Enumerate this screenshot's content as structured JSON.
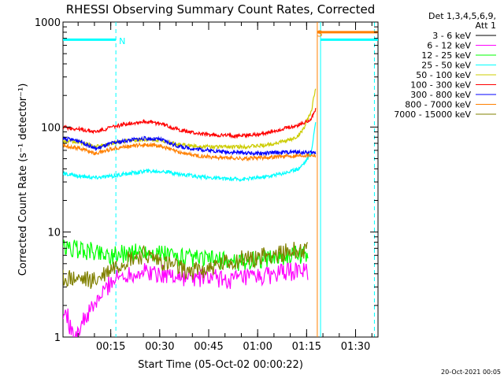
{
  "chart_data": {
    "type": "line",
    "title": "RHESSI Observing Summary Count Rates, Corrected",
    "xlabel": "Start Time (05-Oct-02 00:00:22)",
    "ylabel": "Corrected Count Rate (s⁻¹ detector⁻¹)",
    "x_unit": "minutes after start",
    "xlim": [
      0,
      96.5
    ],
    "ylim": [
      1,
      1000
    ],
    "yscale": "log",
    "x_ticks": [
      {
        "value": 14.63,
        "label": "00:15"
      },
      {
        "value": 29.63,
        "label": "00:30"
      },
      {
        "value": 44.63,
        "label": "00:45"
      },
      {
        "value": 59.63,
        "label": "01:00"
      },
      {
        "value": 74.63,
        "label": "01:15"
      },
      {
        "value": 89.63,
        "label": "01:30"
      }
    ],
    "y_ticks": [
      {
        "value": 1,
        "label": "1"
      },
      {
        "value": 10,
        "label": "10"
      },
      {
        "value": 100,
        "label": "100"
      },
      {
        "value": 1000,
        "label": "1000"
      }
    ],
    "legend_header": [
      "Det 1,3,4,5,6,9,",
      "Att 1"
    ],
    "legend_position": "right",
    "series": [
      {
        "name": "3 - 6 keV",
        "color": "#000000",
        "x": [],
        "values": []
      },
      {
        "name": "6 - 12 keV",
        "color": "#ff00ff",
        "x": [
          0,
          1,
          2,
          3,
          15,
          20,
          25,
          30,
          35,
          40,
          45,
          50,
          55,
          60,
          65,
          70,
          75
        ],
        "values": [
          1.5,
          1.8,
          1.3,
          1.0,
          3.5,
          4.0,
          4.2,
          4.0,
          3.8,
          3.6,
          3.7,
          3.5,
          3.6,
          3.7,
          4.0,
          4.2,
          4.3
        ]
      },
      {
        "name": "12 - 25 keV",
        "color": "#00ff00",
        "x": [
          0,
          5,
          10,
          15,
          20,
          25,
          30,
          35,
          40,
          45,
          50,
          55,
          60,
          65,
          70,
          75
        ],
        "values": [
          7.0,
          6.8,
          6.5,
          6.0,
          6.3,
          6.5,
          6.2,
          5.8,
          5.5,
          5.5,
          5.3,
          5.2,
          5.5,
          5.8,
          6.0,
          6.2
        ]
      },
      {
        "name": "25 - 50 keV",
        "color": "#00ffff",
        "x": [
          0,
          5,
          10,
          15,
          20,
          25,
          30,
          35,
          40,
          45,
          50,
          55,
          60,
          65,
          70,
          72,
          74,
          76,
          77.5
        ],
        "values": [
          36,
          34,
          33,
          34,
          36,
          38,
          38,
          36,
          34,
          33,
          32,
          32,
          33,
          35,
          38,
          40,
          46,
          56,
          120
        ]
      },
      {
        "name": "50 - 100 keV",
        "color": "#cccc00",
        "x": [
          0,
          5,
          10,
          15,
          20,
          25,
          30,
          35,
          40,
          45,
          50,
          55,
          60,
          65,
          70,
          72,
          74,
          76,
          77.5
        ],
        "values": [
          73,
          72,
          65,
          70,
          74,
          76,
          75,
          68,
          66,
          65,
          65,
          65,
          66,
          70,
          76,
          82,
          100,
          140,
          240
        ]
      },
      {
        "name": "100 - 300 keV",
        "color": "#ff0000",
        "x": [
          0,
          5,
          10,
          15,
          20,
          25,
          30,
          35,
          40,
          45,
          50,
          55,
          60,
          65,
          70,
          72,
          74,
          76,
          77.5
        ],
        "values": [
          100,
          95,
          90,
          100,
          108,
          113,
          108,
          95,
          88,
          84,
          83,
          83,
          85,
          92,
          100,
          104,
          110,
          120,
          150
        ]
      },
      {
        "name": "300 - 800 keV",
        "color": "#0000ff",
        "x": [
          0,
          5,
          10,
          15,
          20,
          25,
          30,
          35,
          40,
          45,
          50,
          55,
          60,
          65,
          70,
          75,
          77.5
        ],
        "values": [
          78,
          74,
          62,
          70,
          75,
          78,
          76,
          66,
          62,
          60,
          58,
          57,
          56,
          57,
          58,
          57,
          57
        ]
      },
      {
        "name": "800 - 7000 keV",
        "color": "#ff8000",
        "x": [
          0,
          5,
          10,
          15,
          20,
          25,
          30,
          35,
          40,
          45,
          50,
          55,
          60,
          65,
          70,
          75,
          77.5
        ],
        "values": [
          67,
          63,
          56,
          62,
          66,
          68,
          66,
          58,
          54,
          52,
          51,
          50,
          51,
          52,
          53,
          54,
          54
        ]
      },
      {
        "name": "7000 - 15000 keV",
        "color": "#808000",
        "x": [
          0,
          5,
          10,
          15,
          20,
          25,
          30,
          35,
          40,
          45,
          50,
          55,
          60,
          65,
          70,
          75
        ],
        "values": [
          3.6,
          3.5,
          3.4,
          4.5,
          5.5,
          6.0,
          5.2,
          4.5,
          4.3,
          4.5,
          5.0,
          5.5,
          5.8,
          6.2,
          6.5,
          7.0
        ]
      }
    ],
    "annotations": [
      {
        "text": "N",
        "x": 16.2,
        "y": 660,
        "color": "#00ffff"
      },
      {
        "text": "S",
        "x": 76.8,
        "y": 780,
        "color": "#ff8000"
      }
    ],
    "markers": [
      {
        "kind": "vertical-dashed",
        "x": 16.2,
        "color": "#00ffff"
      },
      {
        "kind": "vertical-dashed",
        "x": 95.4,
        "color": "#00ffff"
      },
      {
        "kind": "vertical-solid",
        "x": 77.9,
        "color": "#ff8000"
      },
      {
        "kind": "vertical-solid",
        "x": 78.9,
        "color": "#00ffff"
      },
      {
        "kind": "horizontal-bar",
        "x0": 0,
        "x1": 16.2,
        "y": 680,
        "color": "#00ffff"
      },
      {
        "kind": "horizontal-bar",
        "x0": 78.9,
        "x1": 96.5,
        "y": 680,
        "color": "#00ffff"
      },
      {
        "kind": "horizontal-bar",
        "x0": 77.9,
        "x1": 96.5,
        "y": 800,
        "color": "#ff8000"
      }
    ]
  },
  "footer": {
    "timestamp": "20-Oct-2021 00:05"
  }
}
